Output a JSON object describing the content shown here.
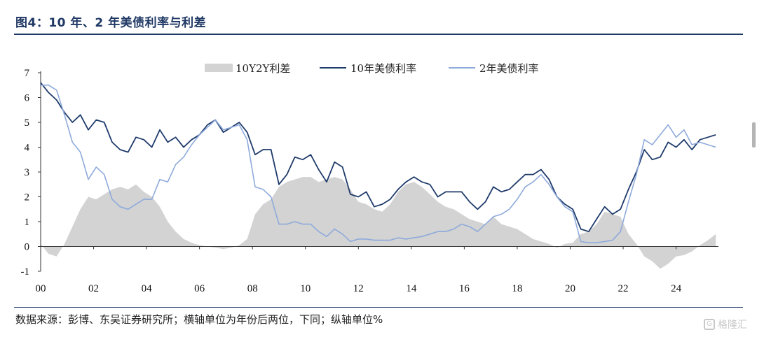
{
  "header": {
    "title": "图4：10 年、2 年美债利率与利差"
  },
  "footer": {
    "source": "数据来源：彭博、东吴证券研究所；横轴单位为年份后两位，下同；纵轴单位%",
    "watermark": "格隆汇"
  },
  "chart_data": {
    "type": "line",
    "title": "",
    "xlabel": "",
    "ylabel": "",
    "xlim": [
      2000,
      2025.6
    ],
    "ylim": [
      -1,
      7
    ],
    "x_tick_labels": [
      "00",
      "02",
      "04",
      "06",
      "08",
      "10",
      "12",
      "14",
      "16",
      "18",
      "20",
      "22",
      "24"
    ],
    "y_tick_labels": [
      "-1",
      "0",
      "1",
      "2",
      "3",
      "4",
      "5",
      "6",
      "7"
    ],
    "legend_position": "top",
    "series": [
      {
        "name": "10Y2Y利差",
        "kind": "area",
        "color": "#d3d3d3",
        "x": [
          2000.0,
          2000.3,
          2000.6,
          2000.9,
          2001.2,
          2001.5,
          2001.8,
          2002.1,
          2002.4,
          2002.7,
          2003.0,
          2003.3,
          2003.6,
          2003.9,
          2004.2,
          2004.5,
          2004.8,
          2005.1,
          2005.4,
          2005.7,
          2006.0,
          2006.3,
          2006.6,
          2006.9,
          2007.2,
          2007.5,
          2007.8,
          2008.1,
          2008.4,
          2008.7,
          2009.0,
          2009.3,
          2009.6,
          2009.9,
          2010.2,
          2010.5,
          2010.8,
          2011.1,
          2011.4,
          2011.7,
          2012.0,
          2012.3,
          2012.6,
          2012.9,
          2013.2,
          2013.5,
          2013.8,
          2014.1,
          2014.4,
          2014.7,
          2015.0,
          2015.3,
          2015.6,
          2015.9,
          2016.2,
          2016.5,
          2016.8,
          2017.1,
          2017.4,
          2017.7,
          2018.0,
          2018.3,
          2018.6,
          2018.9,
          2019.2,
          2019.5,
          2019.8,
          2020.1,
          2020.4,
          2020.7,
          2021.0,
          2021.3,
          2021.6,
          2021.9,
          2022.2,
          2022.5,
          2022.8,
          2023.1,
          2023.4,
          2023.7,
          2024.0,
          2024.3,
          2024.6,
          2024.9,
          2025.2,
          2025.5
        ],
        "values": [
          0.1,
          -0.3,
          -0.4,
          0.1,
          0.8,
          1.5,
          2.0,
          1.9,
          2.1,
          2.3,
          2.4,
          2.3,
          2.5,
          2.2,
          2.0,
          1.6,
          1.0,
          0.6,
          0.3,
          0.15,
          0.05,
          0.0,
          -0.05,
          -0.1,
          -0.05,
          0.05,
          0.3,
          1.3,
          1.7,
          1.9,
          2.4,
          2.6,
          2.7,
          2.8,
          2.8,
          2.6,
          2.7,
          2.8,
          2.7,
          2.3,
          1.8,
          1.7,
          1.5,
          1.4,
          1.7,
          2.2,
          2.5,
          2.6,
          2.4,
          2.1,
          1.8,
          1.6,
          1.5,
          1.3,
          1.1,
          1.0,
          0.9,
          1.2,
          0.9,
          0.8,
          0.7,
          0.5,
          0.3,
          0.2,
          0.1,
          -0.05,
          0.1,
          0.15,
          0.5,
          0.6,
          0.9,
          1.4,
          1.3,
          1.2,
          0.5,
          0.1,
          -0.4,
          -0.6,
          -0.9,
          -0.7,
          -0.4,
          -0.35,
          -0.2,
          0.05,
          0.25,
          0.5
        ]
      },
      {
        "name": "10年美债利率",
        "kind": "line",
        "color": "#1f3b6b",
        "x": [
          2000.0,
          2000.3,
          2000.6,
          2000.9,
          2001.2,
          2001.5,
          2001.8,
          2002.1,
          2002.4,
          2002.7,
          2003.0,
          2003.3,
          2003.6,
          2003.9,
          2004.2,
          2004.5,
          2004.8,
          2005.1,
          2005.4,
          2005.7,
          2006.0,
          2006.3,
          2006.6,
          2006.9,
          2007.2,
          2007.5,
          2007.8,
          2008.1,
          2008.4,
          2008.7,
          2009.0,
          2009.3,
          2009.6,
          2009.9,
          2010.2,
          2010.5,
          2010.8,
          2011.1,
          2011.4,
          2011.7,
          2012.0,
          2012.3,
          2012.6,
          2012.9,
          2013.2,
          2013.5,
          2013.8,
          2014.1,
          2014.4,
          2014.7,
          2015.0,
          2015.3,
          2015.6,
          2015.9,
          2016.2,
          2016.5,
          2016.8,
          2017.1,
          2017.4,
          2017.7,
          2018.0,
          2018.3,
          2018.6,
          2018.9,
          2019.2,
          2019.5,
          2019.8,
          2020.1,
          2020.4,
          2020.7,
          2021.0,
          2021.3,
          2021.6,
          2021.9,
          2022.2,
          2022.5,
          2022.8,
          2023.1,
          2023.4,
          2023.7,
          2024.0,
          2024.3,
          2024.6,
          2024.9,
          2025.2,
          2025.5
        ],
        "values": [
          6.6,
          6.2,
          5.9,
          5.4,
          5.0,
          5.3,
          4.7,
          5.1,
          5.0,
          4.2,
          3.9,
          3.8,
          4.4,
          4.3,
          4.0,
          4.7,
          4.2,
          4.4,
          4.0,
          4.3,
          4.5,
          4.9,
          5.1,
          4.6,
          4.8,
          5.0,
          4.6,
          3.7,
          3.9,
          3.9,
          2.5,
          2.9,
          3.6,
          3.5,
          3.7,
          3.1,
          2.6,
          3.4,
          3.2,
          2.1,
          2.0,
          2.2,
          1.6,
          1.7,
          1.9,
          2.3,
          2.6,
          2.8,
          2.6,
          2.5,
          2.0,
          2.2,
          2.2,
          2.2,
          1.8,
          1.5,
          1.8,
          2.4,
          2.2,
          2.3,
          2.6,
          2.9,
          2.9,
          3.1,
          2.7,
          2.0,
          1.7,
          1.5,
          0.7,
          0.6,
          1.1,
          1.6,
          1.3,
          1.5,
          2.3,
          3.0,
          3.9,
          3.5,
          3.6,
          4.2,
          4.0,
          4.3,
          3.9,
          4.3,
          4.4,
          4.5
        ]
      },
      {
        "name": "2年美债利率",
        "kind": "line",
        "color": "#8eaadb",
        "x": [
          2000.0,
          2000.3,
          2000.6,
          2000.9,
          2001.2,
          2001.5,
          2001.8,
          2002.1,
          2002.4,
          2002.7,
          2003.0,
          2003.3,
          2003.6,
          2003.9,
          2004.2,
          2004.5,
          2004.8,
          2005.1,
          2005.4,
          2005.7,
          2006.0,
          2006.3,
          2006.6,
          2006.9,
          2007.2,
          2007.5,
          2007.8,
          2008.1,
          2008.4,
          2008.7,
          2009.0,
          2009.3,
          2009.6,
          2009.9,
          2010.2,
          2010.5,
          2010.8,
          2011.1,
          2011.4,
          2011.7,
          2012.0,
          2012.3,
          2012.6,
          2012.9,
          2013.2,
          2013.5,
          2013.8,
          2014.1,
          2014.4,
          2014.7,
          2015.0,
          2015.3,
          2015.6,
          2015.9,
          2016.2,
          2016.5,
          2016.8,
          2017.1,
          2017.4,
          2017.7,
          2018.0,
          2018.3,
          2018.6,
          2018.9,
          2019.2,
          2019.5,
          2019.8,
          2020.1,
          2020.4,
          2020.7,
          2021.0,
          2021.3,
          2021.6,
          2021.9,
          2022.2,
          2022.5,
          2022.8,
          2023.1,
          2023.4,
          2023.7,
          2024.0,
          2024.3,
          2024.6,
          2024.9,
          2025.2,
          2025.5
        ],
        "values": [
          6.5,
          6.5,
          6.3,
          5.3,
          4.2,
          3.8,
          2.7,
          3.2,
          2.9,
          1.9,
          1.6,
          1.5,
          1.7,
          1.9,
          1.9,
          2.7,
          2.6,
          3.3,
          3.6,
          4.1,
          4.5,
          4.8,
          5.1,
          4.7,
          4.8,
          4.9,
          4.3,
          2.4,
          2.3,
          2.0,
          0.9,
          0.9,
          1.0,
          0.9,
          0.9,
          0.6,
          0.4,
          0.7,
          0.5,
          0.2,
          0.3,
          0.3,
          0.25,
          0.25,
          0.25,
          0.35,
          0.3,
          0.35,
          0.4,
          0.5,
          0.6,
          0.6,
          0.7,
          0.9,
          0.8,
          0.6,
          0.9,
          1.2,
          1.3,
          1.5,
          1.9,
          2.4,
          2.6,
          2.9,
          2.5,
          2.0,
          1.6,
          1.4,
          0.2,
          0.15,
          0.15,
          0.2,
          0.25,
          0.6,
          1.8,
          2.9,
          4.3,
          4.1,
          4.5,
          4.9,
          4.4,
          4.7,
          4.1,
          4.2,
          4.1,
          4.0
        ]
      }
    ]
  }
}
